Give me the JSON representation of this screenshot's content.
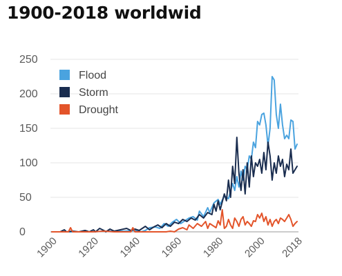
{
  "chart_data": {
    "type": "line",
    "title": "1900-2018 worldwid",
    "xlabel": "",
    "ylabel": "",
    "xlim": [
      1900,
      2018
    ],
    "ylim": [
      0,
      250
    ],
    "x_ticks": [
      1900,
      1920,
      1940,
      1960,
      1980,
      2000,
      2018
    ],
    "y_ticks": [
      0,
      50,
      100,
      150,
      200,
      250
    ],
    "grid": "horizontal",
    "legend": "top-left",
    "series": [
      {
        "name": "Flood",
        "color": "#4aa3df",
        "points": [
          [
            1900,
            0
          ],
          [
            1905,
            0
          ],
          [
            1910,
            0
          ],
          [
            1915,
            0
          ],
          [
            1920,
            0
          ],
          [
            1925,
            1
          ],
          [
            1930,
            1
          ],
          [
            1935,
            1
          ],
          [
            1940,
            2
          ],
          [
            1943,
            0
          ],
          [
            1945,
            2
          ],
          [
            1947,
            6
          ],
          [
            1950,
            7
          ],
          [
            1952,
            5
          ],
          [
            1954,
            12
          ],
          [
            1956,
            8
          ],
          [
            1958,
            14
          ],
          [
            1960,
            18
          ],
          [
            1962,
            12
          ],
          [
            1964,
            16
          ],
          [
            1966,
            20
          ],
          [
            1968,
            22
          ],
          [
            1970,
            17
          ],
          [
            1971,
            30
          ],
          [
            1973,
            22
          ],
          [
            1975,
            35
          ],
          [
            1976,
            28
          ],
          [
            1978,
            42
          ],
          [
            1980,
            47
          ],
          [
            1981,
            40
          ],
          [
            1983,
            52
          ],
          [
            1985,
            48
          ],
          [
            1987,
            70
          ],
          [
            1988,
            60
          ],
          [
            1989,
            80
          ],
          [
            1990,
            65
          ],
          [
            1991,
            88
          ],
          [
            1992,
            75
          ],
          [
            1993,
            95
          ],
          [
            1994,
            90
          ],
          [
            1995,
            110
          ],
          [
            1996,
            105
          ],
          [
            1997,
            130
          ],
          [
            1998,
            122
          ],
          [
            1999,
            160
          ],
          [
            2000,
            155
          ],
          [
            2001,
            170
          ],
          [
            2002,
            172
          ],
          [
            2003,
            155
          ],
          [
            2004,
            125
          ],
          [
            2005,
            150
          ],
          [
            2006,
            225
          ],
          [
            2007,
            220
          ],
          [
            2008,
            170
          ],
          [
            2009,
            150
          ],
          [
            2010,
            185
          ],
          [
            2011,
            155
          ],
          [
            2012,
            135
          ],
          [
            2013,
            140
          ],
          [
            2014,
            135
          ],
          [
            2015,
            162
          ],
          [
            2016,
            160
          ],
          [
            2017,
            120
          ],
          [
            2018,
            127
          ]
        ]
      },
      {
        "name": "Storm",
        "color": "#1a2d4f",
        "points": [
          [
            1900,
            0
          ],
          [
            1904,
            0
          ],
          [
            1906,
            3
          ],
          [
            1907,
            0
          ],
          [
            1910,
            1
          ],
          [
            1913,
            0
          ],
          [
            1916,
            2
          ],
          [
            1918,
            0
          ],
          [
            1920,
            3
          ],
          [
            1921,
            0
          ],
          [
            1923,
            5
          ],
          [
            1925,
            2
          ],
          [
            1926,
            0
          ],
          [
            1928,
            4
          ],
          [
            1930,
            1
          ],
          [
            1933,
            3
          ],
          [
            1936,
            5
          ],
          [
            1938,
            2
          ],
          [
            1940,
            4
          ],
          [
            1942,
            2
          ],
          [
            1945,
            8
          ],
          [
            1947,
            3
          ],
          [
            1949,
            7
          ],
          [
            1951,
            10
          ],
          [
            1953,
            6
          ],
          [
            1955,
            12
          ],
          [
            1957,
            8
          ],
          [
            1959,
            14
          ],
          [
            1961,
            12
          ],
          [
            1963,
            18
          ],
          [
            1965,
            15
          ],
          [
            1967,
            20
          ],
          [
            1969,
            17
          ],
          [
            1971,
            25
          ],
          [
            1973,
            20
          ],
          [
            1975,
            28
          ],
          [
            1977,
            25
          ],
          [
            1978,
            40
          ],
          [
            1979,
            30
          ],
          [
            1980,
            45
          ],
          [
            1981,
            32
          ],
          [
            1983,
            55
          ],
          [
            1984,
            45
          ],
          [
            1985,
            75
          ],
          [
            1986,
            50
          ],
          [
            1987,
            95
          ],
          [
            1988,
            70
          ],
          [
            1989,
            137
          ],
          [
            1990,
            85
          ],
          [
            1991,
            60
          ],
          [
            1992,
            90
          ],
          [
            1993,
            55
          ],
          [
            1994,
            100
          ],
          [
            1995,
            65
          ],
          [
            1996,
            110
          ],
          [
            1997,
            80
          ],
          [
            1998,
            100
          ],
          [
            1999,
            95
          ],
          [
            2000,
            105
          ],
          [
            2001,
            85
          ],
          [
            2002,
            115
          ],
          [
            2003,
            90
          ],
          [
            2004,
            130
          ],
          [
            2005,
            110
          ],
          [
            2006,
            75
          ],
          [
            2007,
            100
          ],
          [
            2008,
            85
          ],
          [
            2009,
            110
          ],
          [
            2010,
            95
          ],
          [
            2011,
            105
          ],
          [
            2012,
            80
          ],
          [
            2013,
            98
          ],
          [
            2014,
            90
          ],
          [
            2015,
            120
          ],
          [
            2016,
            85
          ],
          [
            2017,
            90
          ],
          [
            2018,
            95
          ]
        ]
      },
      {
        "name": "Drought",
        "color": "#e3542a",
        "points": [
          [
            1900,
            0
          ],
          [
            1908,
            0
          ],
          [
            1909,
            6
          ],
          [
            1910,
            0
          ],
          [
            1920,
            0
          ],
          [
            1925,
            1
          ],
          [
            1930,
            0
          ],
          [
            1938,
            0
          ],
          [
            1939,
            6
          ],
          [
            1940,
            0
          ],
          [
            1945,
            0
          ],
          [
            1950,
            0
          ],
          [
            1955,
            0
          ],
          [
            1957,
            1
          ],
          [
            1959,
            0
          ],
          [
            1961,
            4
          ],
          [
            1963,
            6
          ],
          [
            1965,
            3
          ],
          [
            1966,
            10
          ],
          [
            1968,
            5
          ],
          [
            1970,
            12
          ],
          [
            1972,
            8
          ],
          [
            1974,
            15
          ],
          [
            1975,
            5
          ],
          [
            1976,
            12
          ],
          [
            1978,
            8
          ],
          [
            1979,
            6
          ],
          [
            1980,
            16
          ],
          [
            1981,
            10
          ],
          [
            1982,
            32
          ],
          [
            1983,
            5
          ],
          [
            1984,
            8
          ],
          [
            1985,
            18
          ],
          [
            1986,
            10
          ],
          [
            1987,
            5
          ],
          [
            1988,
            20
          ],
          [
            1989,
            15
          ],
          [
            1990,
            8
          ],
          [
            1991,
            18
          ],
          [
            1992,
            22
          ],
          [
            1993,
            10
          ],
          [
            1994,
            15
          ],
          [
            1995,
            12
          ],
          [
            1996,
            8
          ],
          [
            1997,
            16
          ],
          [
            1998,
            15
          ],
          [
            1999,
            25
          ],
          [
            2000,
            20
          ],
          [
            2001,
            27
          ],
          [
            2002,
            15
          ],
          [
            2003,
            22
          ],
          [
            2004,
            10
          ],
          [
            2005,
            18
          ],
          [
            2006,
            8
          ],
          [
            2007,
            15
          ],
          [
            2008,
            18
          ],
          [
            2009,
            12
          ],
          [
            2010,
            20
          ],
          [
            2011,
            18
          ],
          [
            2012,
            15
          ],
          [
            2013,
            20
          ],
          [
            2014,
            25
          ],
          [
            2015,
            18
          ],
          [
            2016,
            8
          ],
          [
            2017,
            12
          ],
          [
            2018,
            15
          ]
        ]
      }
    ]
  }
}
